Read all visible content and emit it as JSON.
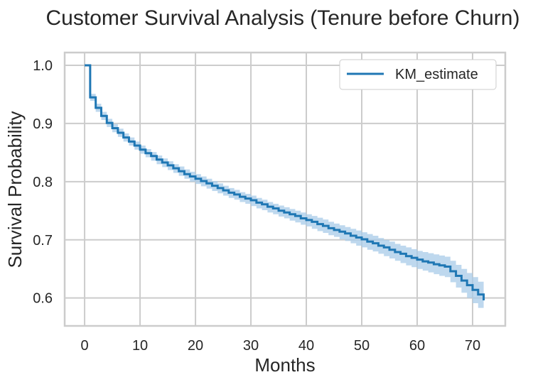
{
  "chart_data": {
    "type": "line",
    "title": "Customer Survival Analysis (Tenure before Churn)",
    "xlabel": "Months",
    "ylabel": "Survival Probability",
    "xlim": [
      -3.6,
      75.9
    ],
    "ylim": [
      0.552,
      1.022
    ],
    "x_ticks": [
      0,
      10,
      20,
      30,
      40,
      50,
      60,
      70
    ],
    "y_ticks": [
      0.6,
      0.7,
      0.8,
      0.9,
      1.0
    ],
    "x_tick_labels": [
      "0",
      "10",
      "20",
      "30",
      "40",
      "50",
      "60",
      "70"
    ],
    "y_tick_labels": [
      "0.6",
      "0.7",
      "0.8",
      "0.9",
      "1.0"
    ],
    "grid": true,
    "legend": {
      "position": "top-right",
      "entries": [
        "KM_estimate"
      ]
    },
    "colors": {
      "line": "#1f77b4",
      "band": "#a8cbe8",
      "grid": "#cccccc",
      "spine": "#cccccc"
    },
    "series": [
      {
        "name": "KM_estimate",
        "step": "post",
        "x": [
          0,
          1,
          2,
          3,
          4,
          5,
          6,
          7,
          8,
          9,
          10,
          11,
          12,
          13,
          14,
          15,
          16,
          17,
          18,
          19,
          20,
          21,
          22,
          23,
          24,
          25,
          26,
          27,
          28,
          29,
          30,
          31,
          32,
          33,
          34,
          35,
          36,
          37,
          38,
          39,
          40,
          41,
          42,
          43,
          44,
          45,
          46,
          47,
          48,
          49,
          50,
          51,
          52,
          53,
          54,
          55,
          56,
          57,
          58,
          59,
          60,
          61,
          62,
          63,
          64,
          65,
          66,
          67,
          68,
          69,
          70,
          71,
          72
        ],
        "values": [
          1.0,
          0.945,
          0.927,
          0.913,
          0.901,
          0.892,
          0.884,
          0.876,
          0.869,
          0.862,
          0.855,
          0.849,
          0.844,
          0.838,
          0.833,
          0.828,
          0.823,
          0.818,
          0.813,
          0.809,
          0.805,
          0.801,
          0.797,
          0.793,
          0.789,
          0.785,
          0.781,
          0.778,
          0.774,
          0.771,
          0.768,
          0.764,
          0.761,
          0.757,
          0.754,
          0.75,
          0.747,
          0.744,
          0.741,
          0.737,
          0.734,
          0.731,
          0.727,
          0.724,
          0.72,
          0.717,
          0.714,
          0.711,
          0.707,
          0.704,
          0.701,
          0.697,
          0.694,
          0.69,
          0.687,
          0.683,
          0.679,
          0.676,
          0.672,
          0.669,
          0.666,
          0.663,
          0.661,
          0.658,
          0.656,
          0.654,
          0.646,
          0.638,
          0.63,
          0.622,
          0.614,
          0.606,
          0.596
        ],
        "ci_lower": [
          1.0,
          0.939,
          0.92,
          0.906,
          0.894,
          0.885,
          0.877,
          0.869,
          0.862,
          0.855,
          0.848,
          0.842,
          0.836,
          0.83,
          0.825,
          0.82,
          0.815,
          0.81,
          0.805,
          0.8,
          0.796,
          0.792,
          0.788,
          0.784,
          0.78,
          0.776,
          0.772,
          0.769,
          0.765,
          0.762,
          0.758,
          0.754,
          0.751,
          0.747,
          0.744,
          0.74,
          0.737,
          0.733,
          0.73,
          0.726,
          0.723,
          0.719,
          0.715,
          0.712,
          0.708,
          0.705,
          0.701,
          0.698,
          0.694,
          0.69,
          0.687,
          0.683,
          0.68,
          0.676,
          0.672,
          0.668,
          0.664,
          0.66,
          0.656,
          0.653,
          0.65,
          0.647,
          0.644,
          0.641,
          0.638,
          0.636,
          0.627,
          0.618,
          0.609,
          0.6,
          0.591,
          0.583,
          0.571
        ],
        "ci_upper": [
          1.0,
          0.951,
          0.934,
          0.92,
          0.908,
          0.899,
          0.891,
          0.883,
          0.876,
          0.869,
          0.862,
          0.856,
          0.851,
          0.845,
          0.84,
          0.835,
          0.83,
          0.826,
          0.821,
          0.817,
          0.813,
          0.809,
          0.805,
          0.801,
          0.797,
          0.793,
          0.789,
          0.786,
          0.782,
          0.779,
          0.776,
          0.772,
          0.769,
          0.765,
          0.762,
          0.759,
          0.756,
          0.753,
          0.75,
          0.747,
          0.744,
          0.741,
          0.738,
          0.735,
          0.731,
          0.728,
          0.725,
          0.722,
          0.719,
          0.716,
          0.713,
          0.71,
          0.707,
          0.703,
          0.7,
          0.697,
          0.693,
          0.69,
          0.687,
          0.684,
          0.681,
          0.679,
          0.677,
          0.675,
          0.673,
          0.671,
          0.664,
          0.657,
          0.65,
          0.643,
          0.636,
          0.628,
          0.62
        ]
      }
    ]
  }
}
